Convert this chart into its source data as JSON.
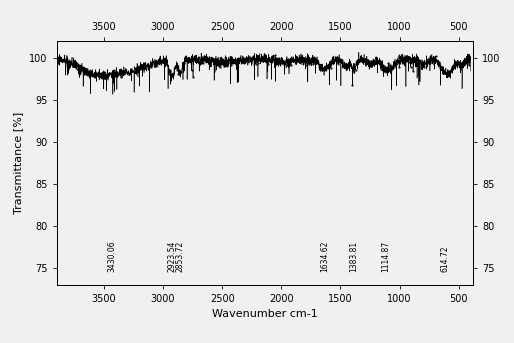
{
  "title": "",
  "xlabel": "Wavenumber cm-1",
  "ylabel": "Transmittance [%]",
  "xlim": [
    3900,
    380
  ],
  "ylim": [
    73,
    102
  ],
  "yticks_left": [
    75,
    80,
    85,
    90,
    95,
    100
  ],
  "yticks_right": [
    75,
    80,
    85,
    90,
    95,
    100
  ],
  "xticks_bottom": [
    3500,
    3000,
    2500,
    2000,
    1500,
    1000,
    500
  ],
  "xticks_top": [
    3500,
    3000,
    2500,
    2000,
    1500,
    1000,
    500
  ],
  "annotations": [
    {
      "x": 3430.06,
      "label": "3430.06"
    },
    {
      "x": 2923.54,
      "label": "2923.54"
    },
    {
      "x": 2853.72,
      "label": "2853.72"
    },
    {
      "x": 1634.62,
      "label": "1634.62"
    },
    {
      "x": 1383.81,
      "label": "1383.81"
    },
    {
      "x": 1114.87,
      "label": "1114.87"
    },
    {
      "x": 614.72,
      "label": "614.72"
    }
  ],
  "line_color": "#000000",
  "background_color": "#f0f0f0",
  "ann_y": 74.5,
  "ann_fontsize": 5.5,
  "tick_fontsize": 7,
  "label_fontsize": 8
}
